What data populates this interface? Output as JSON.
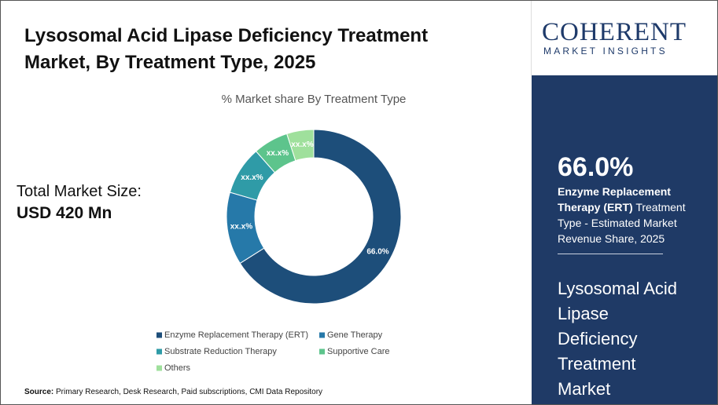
{
  "chart_data": {
    "type": "donut",
    "title": "Lysosomal Acid Lipase Deficiency Treatment Market, By Treatment Type, 2025",
    "subtitle": "% Market share By Treatment Type",
    "categories": [
      "Enzyme Replacement Therapy (ERT)",
      "Gene Therapy",
      "Substrate Reduction Therapy",
      "Supportive Care",
      "Others"
    ],
    "values": [
      66.0,
      13.5,
      9.0,
      6.5,
      5.0
    ],
    "value_labels": [
      "66.0%",
      "xx.x%",
      "xx.x%",
      "xx.x%",
      "xx.x%"
    ],
    "colors": [
      "#1d4e7a",
      "#2679a9",
      "#2f9ba7",
      "#5dc48c",
      "#9fe09c"
    ],
    "legend": "bottom"
  },
  "market_size": {
    "label": "Total Market Size:",
    "value": "USD 420 Mn"
  },
  "logo": {
    "name": "COHERENT",
    "tagline": "MARKET INSIGHTS"
  },
  "sidebar": {
    "highlight": "66.0%",
    "bold": "Enzyme Replacement Therapy (ERT)",
    "text": " Treatment Type - Estimated Market Revenue Share, 2025",
    "market": "Lysosomal Acid Lipase Deficiency Treatment Market"
  },
  "source": {
    "label": "Source:",
    "text": " Primary Research, Desk Research, Paid subscriptions, CMI Data Repository"
  }
}
